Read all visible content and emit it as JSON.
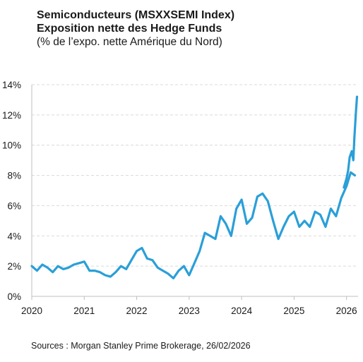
{
  "title": "Semiconducteurs (MSXXSEMI Index)",
  "subtitle": "Exposition nette des Hedge Funds",
  "subtitle2": "(% de l’expo. nette Amérique du Nord)",
  "source": "Sources : Morgan Stanley Prime Brokerage, 26/02/2026",
  "colors": {
    "line": "#2a9fd8",
    "grid": "#d9d9d9",
    "axis": "#bfbfbf",
    "background": "#ffffff"
  },
  "chart_data": {
    "type": "line",
    "title": "",
    "xlabel": "",
    "ylabel": "",
    "xlim": [
      2020.0,
      2026.22
    ],
    "ylim": [
      0,
      14
    ],
    "x_ticks": [
      2020,
      2021,
      2022,
      2023,
      2024,
      2025,
      2026
    ],
    "x_tick_labels": [
      "2020",
      "2021",
      "2022",
      "2023",
      "2024",
      "2025",
      "2026"
    ],
    "y_ticks": [
      0,
      2,
      4,
      6,
      8,
      10,
      12,
      14
    ],
    "y_tick_labels": [
      "0%",
      "2%",
      "4%",
      "6%",
      "8%",
      "10%",
      "12%",
      "14%"
    ],
    "grid": "horizontal dashed",
    "legend": "none",
    "series": [
      {
        "x": [
          2020.0,
          2020.1,
          2020.2,
          2020.3,
          2020.4,
          2020.5,
          2020.6,
          2020.7,
          2020.8,
          2020.9,
          2021.0,
          2021.1,
          2021.2,
          2021.3,
          2021.4,
          2021.5,
          2021.6,
          2021.7,
          2021.8,
          2021.9,
          2022.0,
          2022.1,
          2022.2,
          2022.3,
          2022.4,
          2022.5,
          2022.6,
          2022.7,
          2022.8,
          2022.9,
          2023.0,
          2023.1,
          2023.2,
          2023.3,
          2023.4,
          2023.5,
          2023.6,
          2023.7,
          2023.8,
          2023.9,
          2024.0,
          2024.1,
          2024.2,
          2024.3,
          2024.4,
          2024.5,
          2024.6,
          2024.7,
          2024.8,
          2024.9,
          2025.0,
          2025.1,
          2025.2,
          2025.3,
          2025.4,
          2025.5,
          2025.6,
          2025.7,
          2025.8,
          2025.9,
          2026.0,
          2026.08,
          2026.16
        ],
        "values": [
          2.0,
          1.7,
          2.1,
          1.9,
          1.6,
          2.0,
          1.8,
          1.9,
          2.1,
          2.2,
          2.3,
          1.7,
          1.7,
          1.6,
          1.4,
          1.3,
          1.6,
          2.0,
          1.8,
          2.4,
          3.0,
          3.2,
          2.5,
          2.4,
          1.9,
          1.7,
          1.5,
          1.2,
          1.7,
          2.0,
          1.4,
          2.2,
          3.0,
          4.2,
          4.0,
          3.8,
          5.3,
          4.8,
          4.0,
          5.8,
          6.4,
          4.8,
          5.2,
          6.6,
          6.8,
          6.3,
          5.0,
          3.8,
          4.6,
          5.3,
          5.6,
          4.6,
          5.0,
          4.6,
          5.6,
          5.4,
          4.6,
          5.8,
          5.3,
          6.5,
          7.3,
          8.2,
          8.0
        ]
      },
      {
        "x": [
          2025.95,
          2026.0,
          2026.03,
          2026.06,
          2026.1,
          2026.13,
          2026.15,
          2026.18,
          2026.2
        ],
        "values": [
          7.2,
          7.8,
          8.3,
          9.2,
          9.6,
          9.0,
          10.5,
          12.2,
          13.2
        ]
      }
    ]
  }
}
